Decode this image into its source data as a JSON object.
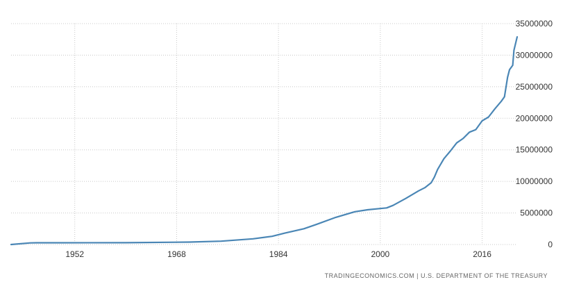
{
  "chart_data": {
    "type": "line",
    "title": "",
    "xlabel": "",
    "ylabel": "",
    "xlim": [
      1942,
      2021.5
    ],
    "ylim": [
      0,
      35000000
    ],
    "grid": true,
    "legend": "none",
    "x_ticks": [
      1952,
      1968,
      1984,
      2000,
      2016
    ],
    "x_tick_labels": [
      "1952",
      "1968",
      "1984",
      "2000",
      "2016"
    ],
    "y_ticks": [
      0,
      5000000,
      10000000,
      15000000,
      20000000,
      25000000,
      30000000,
      35000000
    ],
    "y_tick_labels": [
      "0",
      "5000000",
      "10000000",
      "15000000",
      "20000000",
      "25000000",
      "30000000",
      "35000000"
    ],
    "series": [
      {
        "color": "#4a86b5",
        "x": [
          1942,
          1945,
          1946,
          1950,
          1960,
          1970,
          1975,
          1980,
          1983,
          1985,
          1988,
          1990,
          1993,
          1996,
          1998,
          2000,
          2001,
          2002,
          2004,
          2006,
          2007,
          2008,
          2008.5,
          2009,
          2010,
          2011,
          2012,
          2013,
          2014,
          2015,
          2016,
          2017,
          2018,
          2019,
          2019.5,
          2020,
          2020.3,
          2020.8,
          2021,
          2021.5
        ],
        "values": [
          0,
          250000,
          270000,
          270000,
          290000,
          380000,
          530000,
          900000,
          1300000,
          1800000,
          2500000,
          3200000,
          4300000,
          5200000,
          5500000,
          5700000,
          5800000,
          6200000,
          7300000,
          8500000,
          9000000,
          9800000,
          10700000,
          11900000,
          13600000,
          14800000,
          16100000,
          16800000,
          17800000,
          18200000,
          19600000,
          20200000,
          21500000,
          22700000,
          23400000,
          26500000,
          27700000,
          28400000,
          30800000,
          32900000
        ]
      }
    ]
  },
  "source": {
    "text": "TRADINGECONOMICS.COM  |  U.S. DEPARTMENT OF THE TREASURY"
  }
}
